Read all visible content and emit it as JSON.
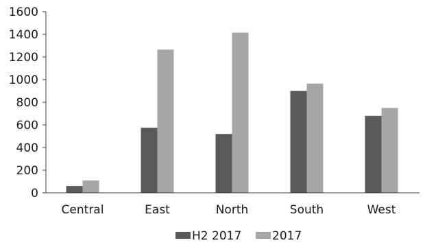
{
  "chart_data": {
    "type": "bar",
    "categories": [
      "Central",
      "East",
      "North",
      "South",
      "West"
    ],
    "series": [
      {
        "name": "H2 2017",
        "values": [
          60,
          575,
          520,
          900,
          680
        ],
        "color": "#595959"
      },
      {
        "name": "2017",
        "values": [
          110,
          1265,
          1415,
          965,
          750
        ],
        "color": "#a6a6a6"
      }
    ],
    "yticks": [
      "0",
      "200",
      "400",
      "600",
      "800",
      "1000",
      "1200",
      "1400",
      "1600"
    ],
    "ylim": [
      0,
      1600
    ],
    "title": "",
    "xlabel": "",
    "ylabel": "",
    "grid": false,
    "legend_position": "bottom"
  }
}
